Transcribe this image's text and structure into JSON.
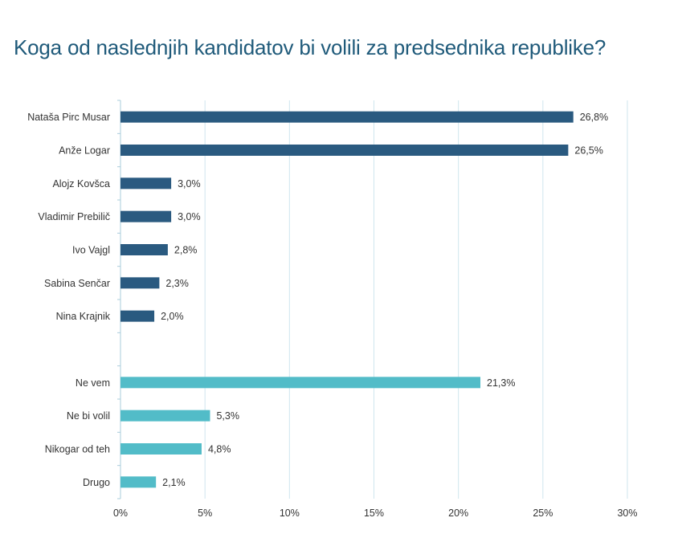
{
  "title": "Koga od naslednjih kandidatov bi volili za predsednika republike?",
  "chart_data": {
    "type": "bar",
    "orientation": "horizontal",
    "title": "Koga od naslednjih kandidatov bi volili za predsednika republike?",
    "xlim": [
      0,
      30
    ],
    "xticks": [
      "0%",
      "5%",
      "10%",
      "15%",
      "20%",
      "25%",
      "30%"
    ],
    "grid": true,
    "categories": [
      "Nataša Pirc Musar",
      "Anže Logar",
      "Alojz Kovšca",
      "Vladimir Prebilič",
      "Ivo Vajgl",
      "Sabina Senčar",
      "Nina Krajnik",
      "",
      "Ne vem",
      "Ne bi volil",
      "Nikogar od teh",
      "Drugo"
    ],
    "values": [
      26.8,
      26.5,
      3.0,
      3.0,
      2.8,
      2.3,
      2.0,
      null,
      21.3,
      5.3,
      4.8,
      2.1
    ],
    "value_labels": [
      "26,8%",
      "26,5%",
      "3,0%",
      "3,0%",
      "2,8%",
      "2,3%",
      "2,0%",
      "",
      "21,3%",
      "5,3%",
      "4,8%",
      "2,1%"
    ],
    "groups": [
      "candidate",
      "candidate",
      "candidate",
      "candidate",
      "candidate",
      "candidate",
      "candidate",
      "",
      "other",
      "other",
      "other",
      "other"
    ],
    "colors": {
      "candidate": "#2a5a80",
      "other": "#52bcc8",
      "grid": "#cfe6ee",
      "axis": "#aaccdb",
      "text": "#333333"
    }
  }
}
